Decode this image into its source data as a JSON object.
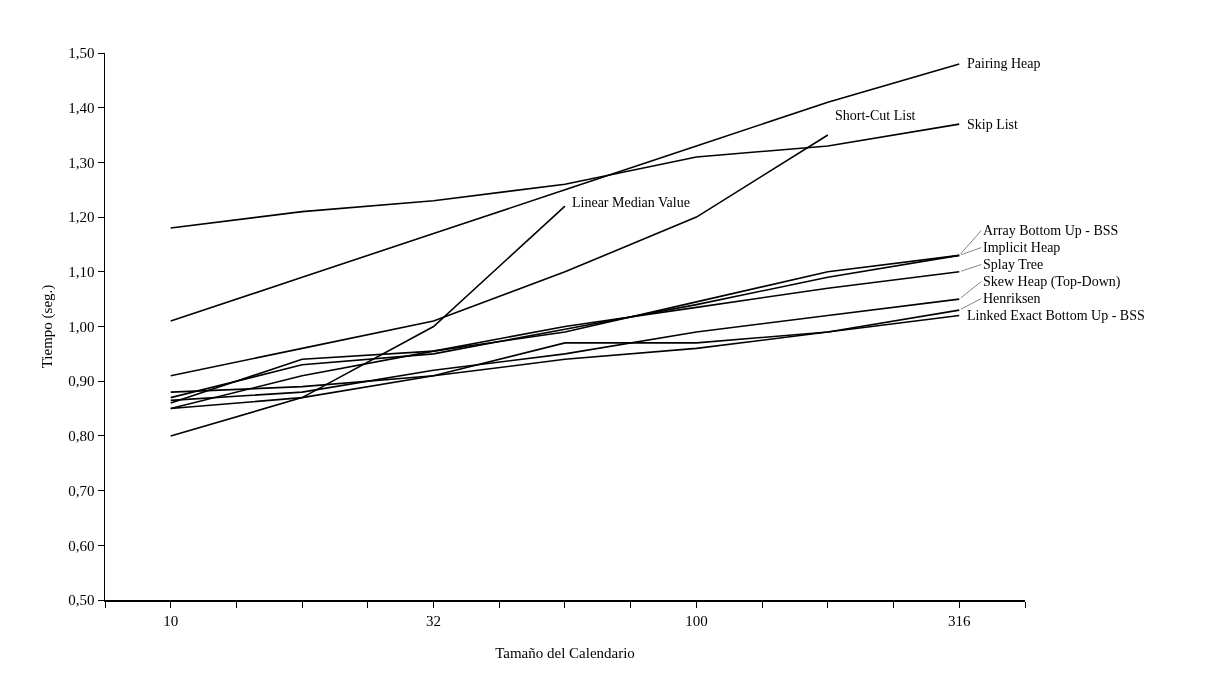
{
  "chart_data": {
    "type": "line",
    "xlabel": "Tamaño del Calendario",
    "ylabel": "Tiempo (seg.)",
    "log": "x",
    "grid": false,
    "legend": false,
    "marker": "none",
    "line_style": "solid",
    "x": [
      10,
      17.78,
      31.62,
      56.23,
      100,
      177.8,
      316.2
    ],
    "xlim": [
      7.499,
      421.7
    ],
    "xticks": [
      {
        "value": 7.499,
        "label": null
      },
      {
        "value": 10,
        "label": "10"
      },
      {
        "value": 13.34,
        "label": null
      },
      {
        "value": 17.78,
        "label": null
      },
      {
        "value": 23.71,
        "label": null
      },
      {
        "value": 31.62,
        "label": "32"
      },
      {
        "value": 42.17,
        "label": null
      },
      {
        "value": 56.23,
        "label": null
      },
      {
        "value": 74.99,
        "label": null
      },
      {
        "value": 100,
        "label": "100"
      },
      {
        "value": 133.4,
        "label": null
      },
      {
        "value": 177.8,
        "label": null
      },
      {
        "value": 237.1,
        "label": null
      },
      {
        "value": 316.2,
        "label": "316"
      },
      {
        "value": 421.7,
        "label": null
      }
    ],
    "ylim": [
      0.5,
      1.5
    ],
    "yticks": [
      {
        "value": 0.5,
        "label": "0,50"
      },
      {
        "value": 0.6,
        "label": "0,60"
      },
      {
        "value": 0.7,
        "label": "0,70"
      },
      {
        "value": 0.8,
        "label": "0,80"
      },
      {
        "value": 0.9,
        "label": "0,90"
      },
      {
        "value": 1.0,
        "label": "1,00"
      },
      {
        "value": 1.1,
        "label": "1,10"
      },
      {
        "value": 1.2,
        "label": "1,20"
      },
      {
        "value": 1.3,
        "label": "1,30"
      },
      {
        "value": 1.4,
        "label": "1,40"
      },
      {
        "value": 1.5,
        "label": "1,50"
      }
    ],
    "series": [
      {
        "name": "Linear Median Value",
        "color": "#000000",
        "values": [
          0.8,
          0.87,
          1.0,
          1.22,
          null,
          null,
          null
        ]
      },
      {
        "name": "Short-Cut List",
        "color": "#000000",
        "values": [
          0.91,
          0.96,
          1.01,
          1.1,
          1.2,
          1.35,
          null
        ]
      },
      {
        "name": "Pairing Heap",
        "color": "#000000",
        "values": [
          1.01,
          1.09,
          1.17,
          1.25,
          1.33,
          1.41,
          1.48
        ]
      },
      {
        "name": "Skip List",
        "color": "#000000",
        "values": [
          1.18,
          1.21,
          1.23,
          1.26,
          1.31,
          1.33,
          1.37
        ]
      },
      {
        "name": "Array Bottom Up - BSS",
        "color": "#000000",
        "values": [
          0.86,
          0.94,
          0.955,
          0.99,
          1.045,
          1.1,
          1.13
        ]
      },
      {
        "name": "Implicit Heap",
        "color": "#000000",
        "values": [
          0.87,
          0.93,
          0.95,
          0.995,
          1.04,
          1.09,
          1.13
        ]
      },
      {
        "name": "Splay Tree",
        "color": "#000000",
        "values": [
          0.85,
          0.91,
          0.955,
          1.0,
          1.035,
          1.07,
          1.1
        ]
      },
      {
        "name": "Skew Heap (Top-Down)",
        "color": "#000000",
        "values": [
          0.865,
          0.88,
          0.92,
          0.95,
          0.99,
          1.02,
          1.05
        ]
      },
      {
        "name": "Henriksen",
        "color": "#000000",
        "values": [
          0.85,
          0.87,
          0.91,
          0.94,
          0.96,
          0.99,
          1.03
        ]
      },
      {
        "name": "Linked Exact Bottom Up - BSS",
        "color": "#000000",
        "values": [
          0.88,
          0.89,
          0.91,
          0.97,
          0.97,
          0.99,
          1.02
        ]
      }
    ]
  }
}
